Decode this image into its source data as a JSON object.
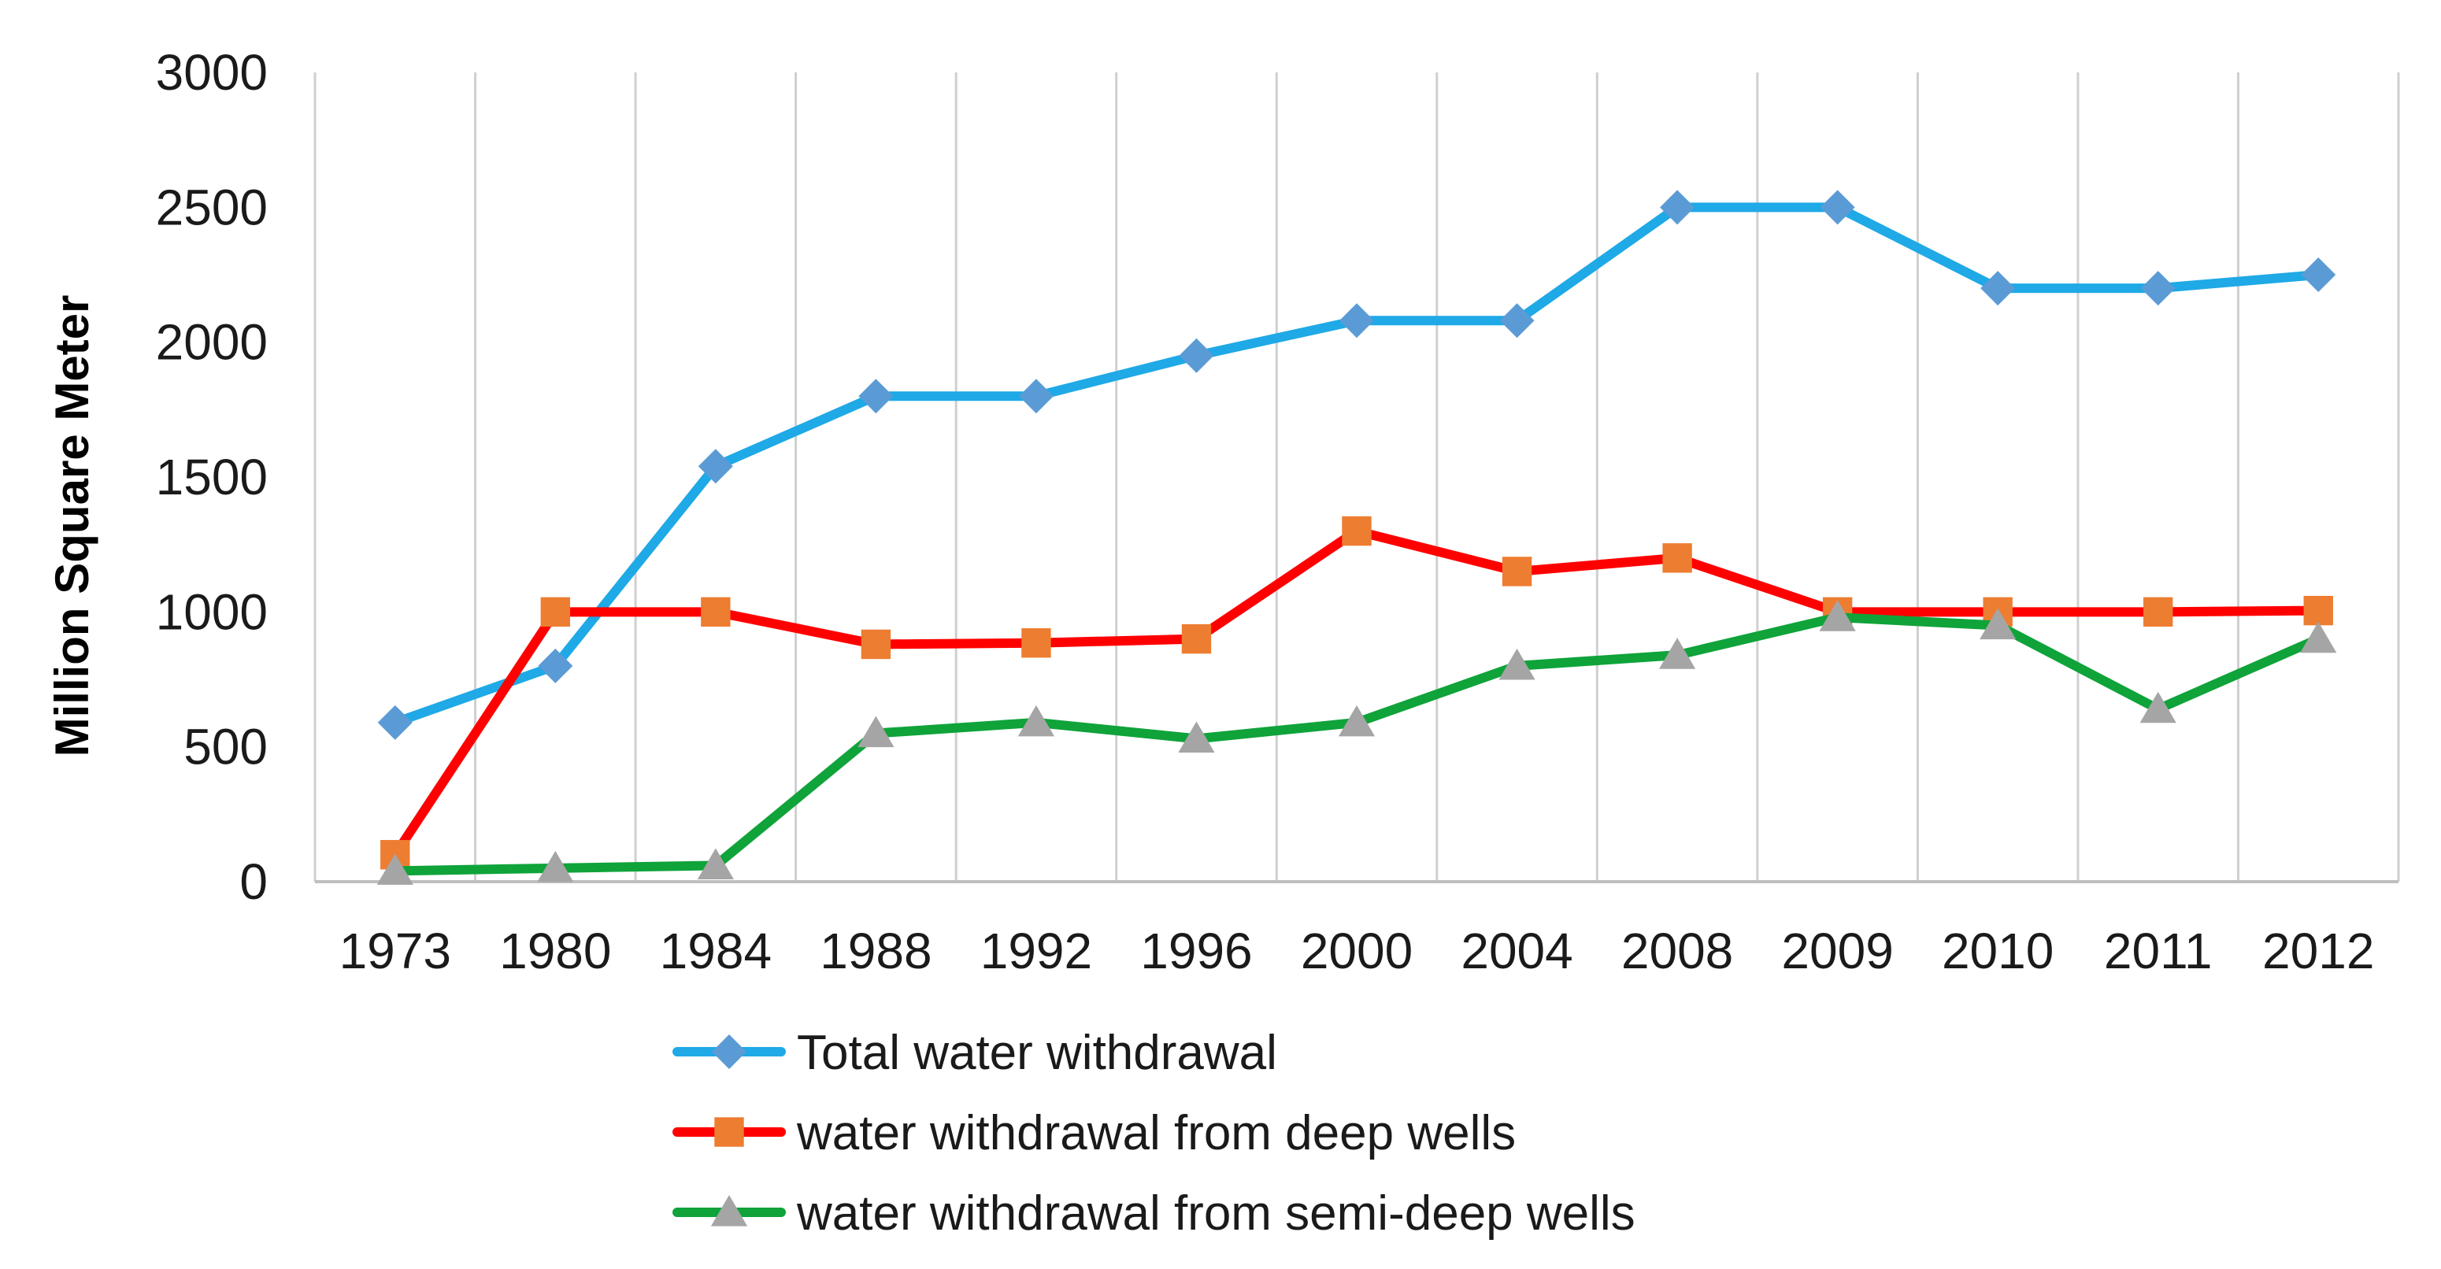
{
  "chart_data": {
    "type": "line",
    "title": "",
    "xlabel": "",
    "ylabel": "Million Square Meter",
    "ylim": [
      0,
      3000
    ],
    "yticks": [
      "0",
      "500",
      "1000",
      "1500",
      "2000",
      "2500",
      "3000"
    ],
    "categories": [
      "1973",
      "1980",
      "1984",
      "1988",
      "1992",
      "1996",
      "2000",
      "2004",
      "2008",
      "2009",
      "2010",
      "2011",
      "2012"
    ],
    "grid": "vertical",
    "legend_position": "bottom",
    "series": [
      {
        "name": "Total water withdrawal",
        "color": "#1fa9e6",
        "marker": "diamond",
        "marker_color": "#5b9bd5",
        "values": [
          590,
          800,
          1540,
          1800,
          1800,
          1950,
          2080,
          2080,
          2500,
          2500,
          2200,
          2200,
          2250
        ]
      },
      {
        "name": "water withdrawal from deep wells",
        "color": "#ff0000",
        "marker": "square",
        "marker_color": "#ed7d31",
        "values": [
          100,
          1000,
          1000,
          880,
          885,
          900,
          1300,
          1150,
          1200,
          1000,
          1000,
          1000,
          1005
        ]
      },
      {
        "name": "water withdrawal from semi-deep wells",
        "color": "#0fa33a",
        "marker": "triangle",
        "marker_color": "#a5a5a5",
        "values": [
          40,
          50,
          60,
          550,
          590,
          530,
          590,
          800,
          840,
          980,
          950,
          640,
          900
        ]
      }
    ]
  }
}
